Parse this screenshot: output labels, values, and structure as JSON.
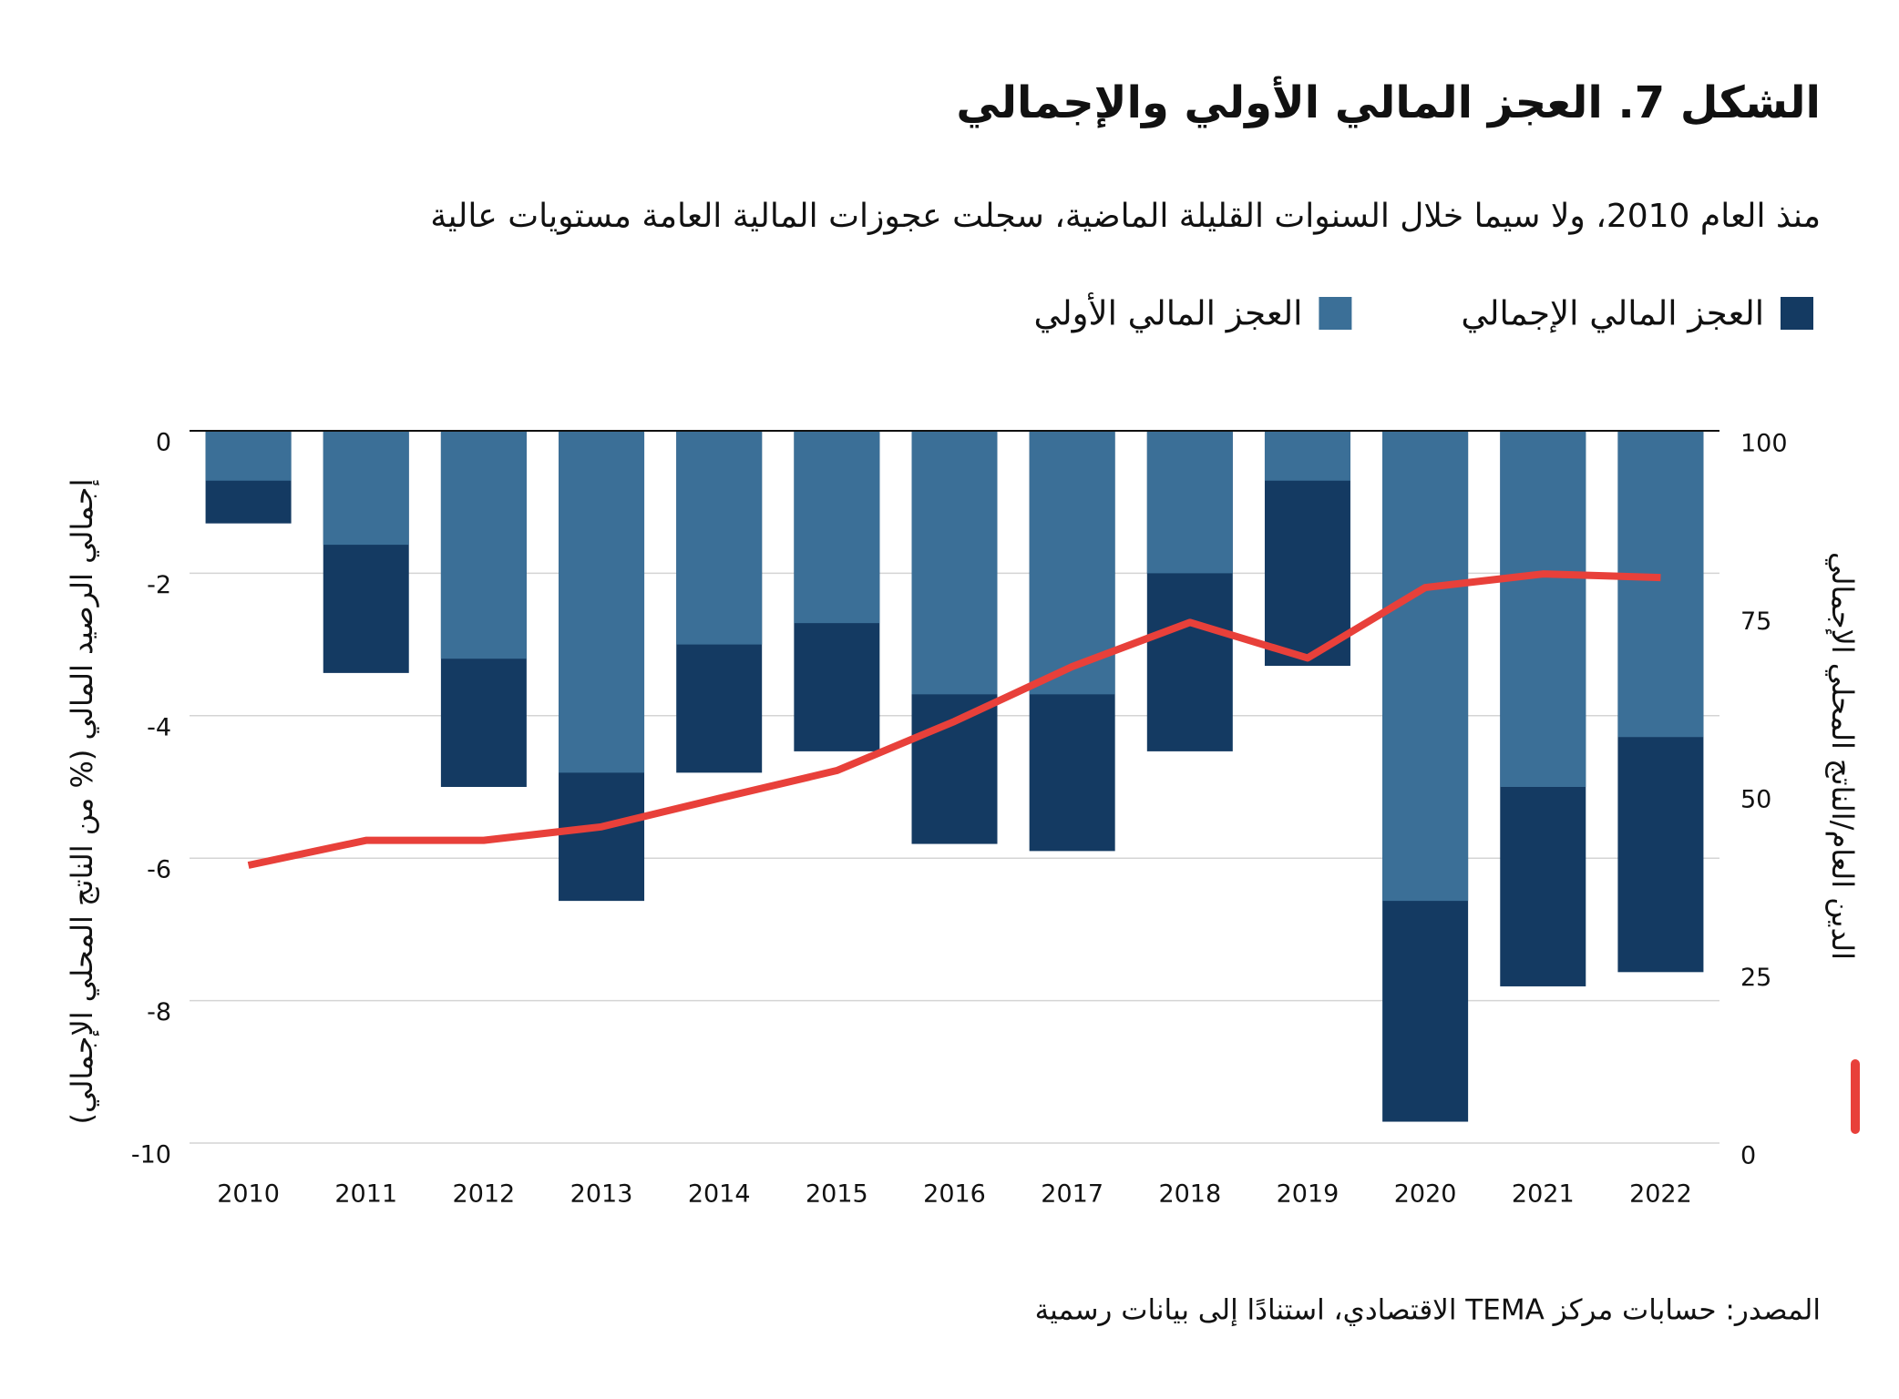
{
  "chart_data": {
    "type": "bar",
    "title": "الشكل 7. العجز المالي الأولي والإجمالي",
    "subtitle": "منذ العام 2010، ولا سيما خلال السنوات القليلة الماضية، سجلت عجوزات المالية العامة مستويات عالية",
    "ylabel": "إجمالي الرصيد المالي (% من الناتج المحلي الإجمالي)",
    "y2label": "الدين العام/الناتج المحلي الإجمالي",
    "source": "المصدر: حسابات مركز TEMA الاقتصادي، استنادًا إلى بيانات رسمية",
    "categories": [
      "2010",
      "2011",
      "2012",
      "2013",
      "2014",
      "2015",
      "2016",
      "2017",
      "2018",
      "2019",
      "2020",
      "2021",
      "2022"
    ],
    "series": [
      {
        "name": "العجز المالي الإجمالي",
        "color": "#143a62",
        "values": [
          -1.3,
          -3.4,
          -5.0,
          -6.6,
          -4.8,
          -4.5,
          -5.8,
          -5.9,
          -4.5,
          -3.3,
          -9.7,
          -7.8,
          -7.6
        ]
      },
      {
        "name": "العجز المالي الأولي",
        "color": "#3b6f97",
        "values": [
          -0.7,
          -1.6,
          -3.2,
          -4.8,
          -3.0,
          -2.7,
          -3.7,
          -3.7,
          -2.0,
          -0.7,
          -6.6,
          -5.0,
          -4.3
        ]
      },
      {
        "type": "line",
        "axis": "y2",
        "color": "#e8403a",
        "values": [
          39,
          42.5,
          42.5,
          44.4,
          48.4,
          52.3,
          59.2,
          66.9,
          73.1,
          68.1,
          78.0,
          79.9,
          79.4
        ]
      }
    ],
    "ylim": [
      -10,
      0
    ],
    "yticks": [
      0,
      -2,
      -4,
      -6,
      -8,
      -10
    ],
    "y2lim": [
      0,
      100
    ],
    "y2ticks": [
      100,
      75,
      50,
      25,
      0
    ],
    "grid": true
  }
}
